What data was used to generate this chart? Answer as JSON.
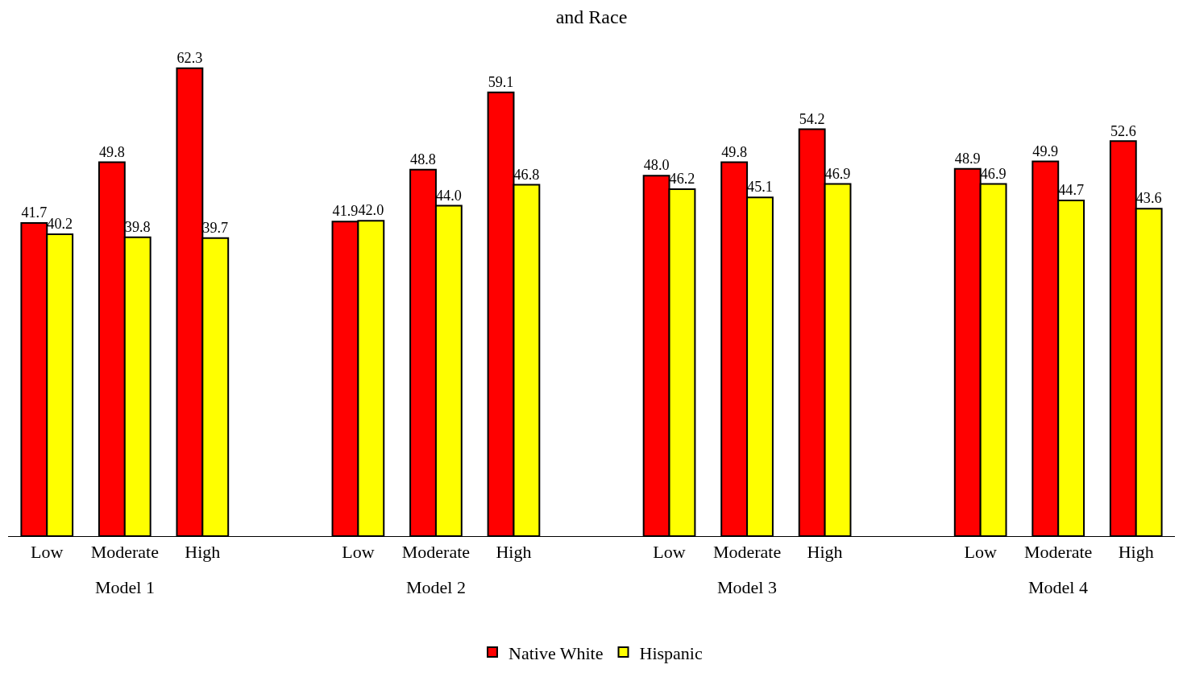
{
  "chart_data": {
    "type": "bar",
    "title": "and Race",
    "categories": [
      "Low",
      "Moderate",
      "High",
      "Low",
      "Moderate",
      "High",
      "Low",
      "Moderate",
      "High",
      "Low",
      "Moderate",
      "High"
    ],
    "series": [
      {
        "name": "Native White",
        "color": "#ff0000",
        "values": [
          41.7,
          49.8,
          62.3,
          41.9,
          48.8,
          59.1,
          48.0,
          49.8,
          54.2,
          48.9,
          49.9,
          52.6
        ],
        "value_labels": [
          "41.7",
          "49.8",
          "62.3",
          "41.9",
          "48.8",
          "59.1",
          "48.0",
          "49.8",
          "54.2",
          "48.9",
          "49.9",
          "52.6"
        ]
      },
      {
        "name": "Hispanic",
        "color": "#ffff00",
        "values": [
          40.2,
          39.8,
          39.7,
          42.0,
          44.0,
          46.8,
          46.2,
          45.1,
          46.9,
          46.9,
          44.7,
          43.6
        ],
        "value_labels": [
          "40.2",
          "39.8",
          "39.7",
          "42.0",
          "44.0",
          "46.8",
          "46.2",
          "45.1",
          "46.9",
          "46.9",
          "44.7",
          "43.6"
        ]
      }
    ],
    "annotations": [
      "Model 1",
      "Model 2",
      "Model 3",
      "Model 4"
    ],
    "legend": "bottom"
  }
}
